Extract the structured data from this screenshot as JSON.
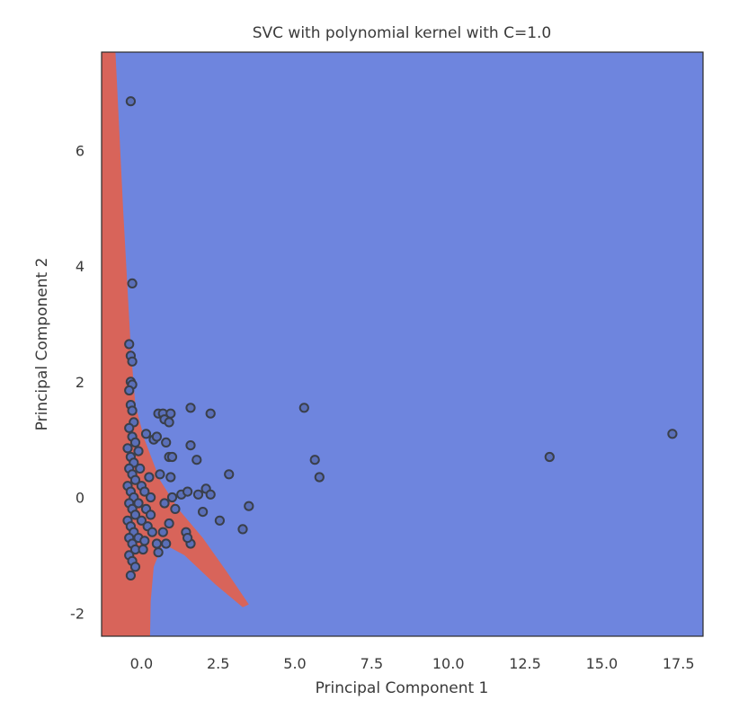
{
  "chart_data": {
    "type": "scatter",
    "title": "SVC with polynomial kernel with C=1.0",
    "xlabel": "Principal Component 1",
    "ylabel": "Principal Component 2",
    "xlim": [
      -1.3,
      18.3
    ],
    "ylim": [
      -2.4,
      7.7
    ],
    "xticks": [
      0.0,
      2.5,
      5.0,
      7.5,
      10.0,
      12.5,
      15.0,
      17.5
    ],
    "xtick_labels": [
      "0.0",
      "2.5",
      "5.0",
      "7.5",
      "10.0",
      "12.5",
      "15.0",
      "17.5"
    ],
    "yticks": [
      -2,
      0,
      2,
      4,
      6
    ],
    "ytick_labels": [
      "-2",
      "0",
      "2",
      "4",
      "6"
    ],
    "grid": false,
    "colors": {
      "background_region": "#6e85de",
      "decision_region": "#d8645a",
      "point_fill": "#5a6fb8",
      "point_edge": "#3a3f4a"
    },
    "decision_region_outline": [
      [
        -1.3,
        7.7
      ],
      [
        -0.85,
        7.7
      ],
      [
        -0.6,
        5.0
      ],
      [
        -0.35,
        2.6
      ],
      [
        -0.2,
        1.6
      ],
      [
        0.1,
        1.0
      ],
      [
        0.6,
        0.3
      ],
      [
        1.2,
        -0.2
      ],
      [
        2.0,
        -0.7
      ],
      [
        2.8,
        -1.3
      ],
      [
        3.5,
        -1.85
      ],
      [
        3.3,
        -1.9
      ],
      [
        2.4,
        -1.5
      ],
      [
        1.4,
        -1.0
      ],
      [
        0.7,
        -0.8
      ],
      [
        0.4,
        -1.2
      ],
      [
        0.3,
        -1.8
      ],
      [
        0.28,
        -2.4
      ],
      [
        -1.3,
        -2.4
      ]
    ],
    "points": [
      [
        -0.35,
        6.85
      ],
      [
        -0.3,
        3.7
      ],
      [
        -0.4,
        2.65
      ],
      [
        -0.35,
        2.45
      ],
      [
        -0.3,
        2.35
      ],
      [
        -0.35,
        2.0
      ],
      [
        -0.3,
        1.95
      ],
      [
        -0.4,
        1.85
      ],
      [
        -0.35,
        1.6
      ],
      [
        -0.3,
        1.5
      ],
      [
        -0.25,
        1.3
      ],
      [
        -0.4,
        1.2
      ],
      [
        -0.3,
        1.05
      ],
      [
        -0.2,
        0.95
      ],
      [
        -0.45,
        0.85
      ],
      [
        -0.35,
        0.7
      ],
      [
        -0.25,
        0.6
      ],
      [
        -0.4,
        0.5
      ],
      [
        -0.3,
        0.4
      ],
      [
        -0.2,
        0.3
      ],
      [
        -0.45,
        0.2
      ],
      [
        -0.35,
        0.1
      ],
      [
        -0.25,
        0.0
      ],
      [
        -0.4,
        -0.1
      ],
      [
        -0.3,
        -0.2
      ],
      [
        -0.2,
        -0.3
      ],
      [
        -0.45,
        -0.4
      ],
      [
        -0.35,
        -0.5
      ],
      [
        -0.25,
        -0.6
      ],
      [
        -0.4,
        -0.7
      ],
      [
        -0.3,
        -0.8
      ],
      [
        -0.2,
        -0.9
      ],
      [
        -0.4,
        -1.0
      ],
      [
        -0.3,
        -1.1
      ],
      [
        -0.2,
        -1.2
      ],
      [
        -0.35,
        -1.35
      ],
      [
        -0.1,
        0.8
      ],
      [
        -0.05,
        0.5
      ],
      [
        0.0,
        0.2
      ],
      [
        -0.1,
        -0.1
      ],
      [
        0.0,
        -0.4
      ],
      [
        -0.1,
        -0.7
      ],
      [
        0.05,
        -0.9
      ],
      [
        0.1,
        0.1
      ],
      [
        0.15,
        -0.2
      ],
      [
        0.2,
        -0.5
      ],
      [
        0.1,
        -0.75
      ],
      [
        0.15,
        1.1
      ],
      [
        0.3,
        0.0
      ],
      [
        0.3,
        -0.3
      ],
      [
        0.35,
        -0.6
      ],
      [
        0.25,
        0.35
      ],
      [
        0.4,
        1.0
      ],
      [
        0.5,
        1.05
      ],
      [
        0.55,
        1.45
      ],
      [
        0.7,
        1.45
      ],
      [
        0.75,
        1.35
      ],
      [
        0.95,
        1.45
      ],
      [
        0.9,
        1.3
      ],
      [
        1.6,
        1.55
      ],
      [
        2.25,
        1.45
      ],
      [
        1.6,
        0.9
      ],
      [
        0.9,
        0.7
      ],
      [
        1.0,
        0.7
      ],
      [
        0.8,
        0.95
      ],
      [
        1.8,
        0.65
      ],
      [
        0.6,
        0.4
      ],
      [
        0.95,
        0.35
      ],
      [
        1.3,
        0.05
      ],
      [
        1.5,
        0.1
      ],
      [
        1.85,
        0.05
      ],
      [
        2.1,
        0.15
      ],
      [
        2.25,
        0.05
      ],
      [
        1.0,
        0.0
      ],
      [
        0.75,
        -0.1
      ],
      [
        1.1,
        -0.2
      ],
      [
        0.9,
        -0.45
      ],
      [
        0.7,
        -0.6
      ],
      [
        0.5,
        -0.8
      ],
      [
        0.55,
        -0.95
      ],
      [
        0.8,
        -0.8
      ],
      [
        1.45,
        -0.6
      ],
      [
        1.6,
        -0.8
      ],
      [
        1.5,
        -0.7
      ],
      [
        2.0,
        -0.25
      ],
      [
        2.55,
        -0.4
      ],
      [
        3.3,
        -0.55
      ],
      [
        3.5,
        -0.15
      ],
      [
        2.85,
        0.4
      ],
      [
        5.3,
        1.55
      ],
      [
        5.65,
        0.65
      ],
      [
        5.8,
        0.35
      ],
      [
        13.3,
        0.7
      ],
      [
        17.3,
        1.1
      ]
    ]
  }
}
